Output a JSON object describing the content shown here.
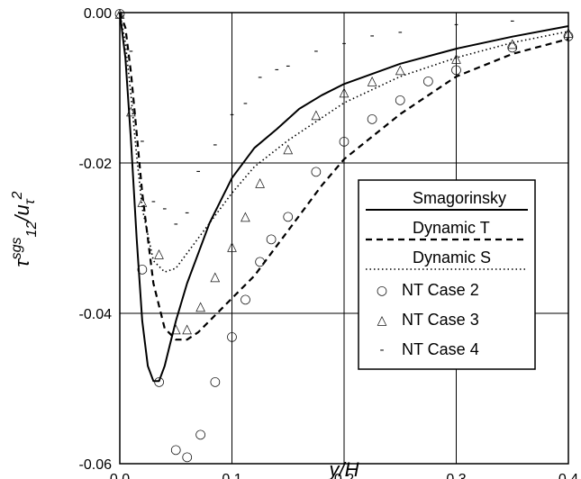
{
  "chart_data": {
    "type": "line",
    "xlabel": "y/H",
    "ylabel": {
      "tau": "τ",
      "sup_sgs": "sgs",
      "sub_12": "12",
      "slash": "/",
      "u": "u",
      "sub_tau": "τ",
      "sup_2": "2"
    },
    "xlim": [
      0.0,
      0.4
    ],
    "ylim": [
      -0.06,
      0.0
    ],
    "xticks": [
      0.0,
      0.1,
      0.2,
      0.3,
      0.4
    ],
    "xtick_labels": [
      "0.0",
      "0.1",
      "0.2",
      "0.3",
      "0.4"
    ],
    "yticks": [
      0.0,
      -0.02,
      -0.04,
      -0.06
    ],
    "ytick_labels": [
      "0.00",
      "-0.02",
      "-0.04",
      "-0.06"
    ],
    "grid": true,
    "legend_position": "right-center",
    "series": [
      {
        "name": "Smagorinsky",
        "style": "solid",
        "x": [
          0.0,
          0.005,
          0.01,
          0.015,
          0.02,
          0.025,
          0.03,
          0.035,
          0.04,
          0.045,
          0.05,
          0.06,
          0.07,
          0.08,
          0.09,
          0.1,
          0.12,
          0.14,
          0.16,
          0.18,
          0.2,
          0.25,
          0.3,
          0.35,
          0.4
        ],
        "y": [
          0.0,
          -0.006,
          -0.017,
          -0.03,
          -0.041,
          -0.047,
          -0.049,
          -0.049,
          -0.047,
          -0.044,
          -0.041,
          -0.036,
          -0.032,
          -0.028,
          -0.025,
          -0.022,
          -0.018,
          -0.0155,
          -0.0128,
          -0.011,
          -0.0095,
          -0.0068,
          -0.0048,
          -0.0032,
          -0.0018
        ]
      },
      {
        "name": "Dynamic T",
        "style": "dashed",
        "x": [
          0.0,
          0.005,
          0.01,
          0.015,
          0.02,
          0.03,
          0.04,
          0.05,
          0.06,
          0.07,
          0.08,
          0.1,
          0.12,
          0.15,
          0.18,
          0.2,
          0.25,
          0.3,
          0.35,
          0.4
        ],
        "y": [
          0.0,
          -0.002,
          -0.008,
          -0.016,
          -0.024,
          -0.036,
          -0.042,
          -0.0435,
          -0.0435,
          -0.0425,
          -0.041,
          -0.038,
          -0.035,
          -0.029,
          -0.023,
          -0.0195,
          -0.0135,
          -0.0085,
          -0.0055,
          -0.0035
        ]
      },
      {
        "name": "Dynamic S",
        "style": "dotted",
        "x": [
          0.0,
          0.005,
          0.01,
          0.015,
          0.02,
          0.03,
          0.04,
          0.05,
          0.06,
          0.08,
          0.1,
          0.12,
          0.15,
          0.2,
          0.25,
          0.3,
          0.35,
          0.4
        ],
        "y": [
          0.0,
          -0.004,
          -0.011,
          -0.019,
          -0.026,
          -0.033,
          -0.0345,
          -0.034,
          -0.032,
          -0.028,
          -0.024,
          -0.0205,
          -0.017,
          -0.012,
          -0.0085,
          -0.006,
          -0.004,
          -0.0025
        ]
      },
      {
        "name": "NT Case 2",
        "style": "marker",
        "marker": "○",
        "x": [
          0.0,
          0.02,
          0.035,
          0.05,
          0.06,
          0.072,
          0.085,
          0.1,
          0.112,
          0.125,
          0.135,
          0.15,
          0.175,
          0.2,
          0.225,
          0.25,
          0.275,
          0.3,
          0.35,
          0.4
        ],
        "y": [
          0.0,
          -0.034,
          -0.049,
          -0.058,
          -0.059,
          -0.056,
          -0.049,
          -0.043,
          -0.038,
          -0.033,
          -0.03,
          -0.027,
          -0.021,
          -0.017,
          -0.014,
          -0.0115,
          -0.009,
          -0.0075,
          -0.0045,
          -0.003
        ]
      },
      {
        "name": "NT Case 3",
        "style": "marker",
        "marker": "△",
        "x": [
          0.0,
          0.01,
          0.02,
          0.035,
          0.05,
          0.06,
          0.072,
          0.085,
          0.1,
          0.112,
          0.125,
          0.15,
          0.175,
          0.2,
          0.225,
          0.25,
          0.3,
          0.35,
          0.4
        ],
        "y": [
          0.0,
          -0.013,
          -0.025,
          -0.032,
          -0.042,
          -0.042,
          -0.039,
          -0.035,
          -0.031,
          -0.027,
          -0.0225,
          -0.018,
          -0.0135,
          -0.0105,
          -0.009,
          -0.0075,
          -0.006,
          -0.004,
          -0.0025
        ]
      },
      {
        "name": "NT Case 4",
        "style": "marker",
        "marker": "-",
        "x": [
          0.0,
          0.01,
          0.02,
          0.03,
          0.04,
          0.05,
          0.06,
          0.07,
          0.085,
          0.1,
          0.112,
          0.125,
          0.14,
          0.15,
          0.175,
          0.2,
          0.225,
          0.25,
          0.3,
          0.35
        ],
        "y": [
          0.0,
          -0.005,
          -0.017,
          -0.025,
          -0.026,
          -0.028,
          -0.0265,
          -0.021,
          -0.0175,
          -0.0135,
          -0.012,
          -0.0085,
          -0.0075,
          -0.007,
          -0.005,
          -0.004,
          -0.003,
          -0.0025,
          -0.0015,
          -0.001
        ]
      }
    ]
  }
}
